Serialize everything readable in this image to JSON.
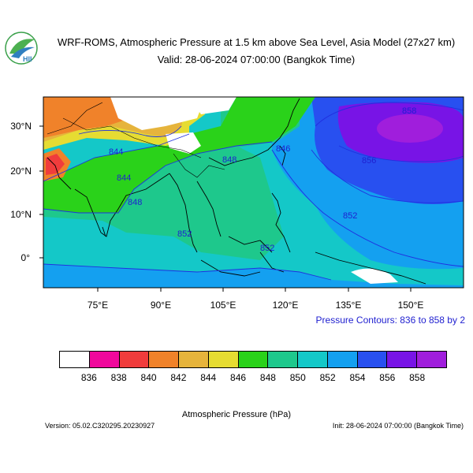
{
  "header": {
    "title": "WRF-ROMS, Atmospheric Pressure at 1.5 km above Sea Level, Asia Model (27x27 km)",
    "valid": "Valid: 28-06-2024 07:00:00 (Bangkok Time)",
    "logo_text": "HII"
  },
  "map": {
    "lat_labels": [
      "30°N",
      "20°N",
      "10°N",
      "0°"
    ],
    "lon_labels": [
      "75°E",
      "90°E",
      "105°E",
      "120°E",
      "135°E",
      "150°E"
    ],
    "contour_labels": [
      "858",
      "856",
      "852",
      "848",
      "848",
      "846",
      "844",
      "844",
      "852",
      "852"
    ]
  },
  "contour_note": "Pressure Contours: 836 to 858 by 2",
  "colorbar": {
    "levels": [
      "836",
      "838",
      "840",
      "842",
      "844",
      "846",
      "848",
      "850",
      "852",
      "854",
      "856",
      "858"
    ],
    "colors": [
      "#ffffff",
      "#f0089c",
      "#f03c3c",
      "#f0822a",
      "#e6b43c",
      "#e6dc32",
      "#2ad21a",
      "#1ec88c",
      "#14c8c8",
      "#14a0f0",
      "#2850f0",
      "#7814e6",
      "#a01edc"
    ],
    "label": "Atmospheric Pressure (hPa)"
  },
  "footer": {
    "version": "Version: 05.02.C320295.20230927",
    "init": "Init: 28-06-2024 07:00:00 (Bangkok Time)"
  }
}
